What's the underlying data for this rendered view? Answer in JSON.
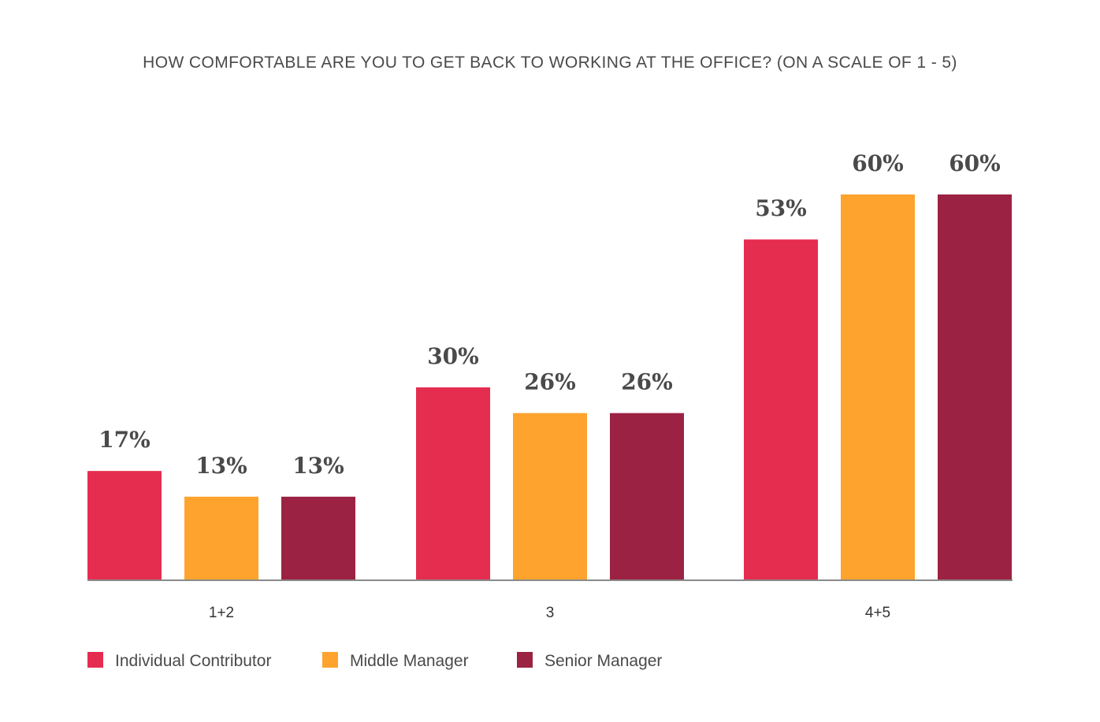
{
  "chart_data": {
    "type": "bar",
    "title": "HOW COMFORTABLE ARE YOU TO GET BACK TO WORKING AT THE OFFICE? (ON A SCALE OF 1 - 5)",
    "xlabel": "",
    "ylabel": "",
    "categories": [
      "1+2",
      "3",
      "4+5"
    ],
    "series": [
      {
        "name": "Individual Contributor",
        "color": "#e52d50",
        "values": [
          17,
          30,
          53
        ],
        "labels": [
          "17%",
          "30%",
          "53%"
        ]
      },
      {
        "name": "Middle Manager",
        "color": "#fea32d",
        "values": [
          13,
          26,
          60
        ],
        "labels": [
          "13%",
          "26%",
          "60%"
        ]
      },
      {
        "name": "Senior Manager",
        "color": "#9b2242",
        "values": [
          13,
          26,
          60
        ],
        "labels": [
          "13%",
          "26%",
          "60%"
        ]
      }
    ],
    "ylim": [
      0,
      60
    ],
    "grid": false,
    "legend": "bottom-left",
    "axis_color": "#8a8a8a"
  }
}
